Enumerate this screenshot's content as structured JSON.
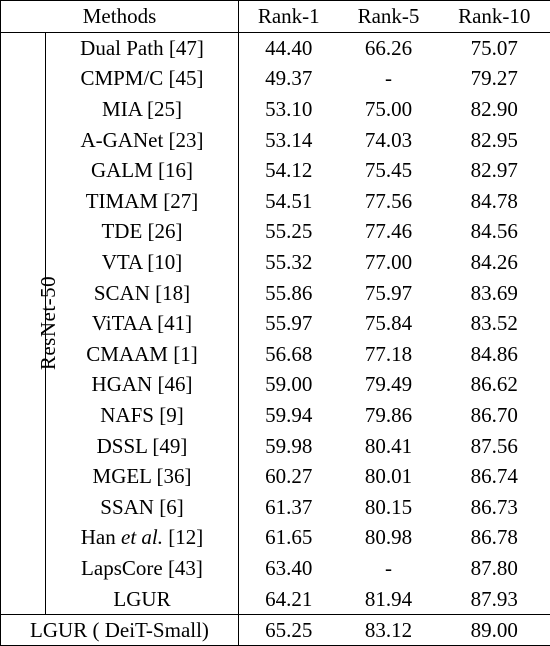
{
  "header": {
    "methods": "Methods",
    "rank1": "Rank-1",
    "rank5": "Rank-5",
    "rank10": "Rank-10"
  },
  "group_label": "ResNet-50",
  "rows": [
    {
      "method": "Dual Path [47]",
      "r1": "44.40",
      "r5": "66.26",
      "r10": "75.07"
    },
    {
      "method": "CMPM/C [45]",
      "r1": "49.37",
      "r5": "-",
      "r10": "79.27"
    },
    {
      "method": "MIA [25]",
      "r1": "53.10",
      "r5": "75.00",
      "r10": "82.90"
    },
    {
      "method": "A-GANet [23]",
      "r1": "53.14",
      "r5": "74.03",
      "r10": "82.95"
    },
    {
      "method": "GALM [16]",
      "r1": "54.12",
      "r5": "75.45",
      "r10": "82.97"
    },
    {
      "method": "TIMAM [27]",
      "r1": "54.51",
      "r5": "77.56",
      "r10": "84.78"
    },
    {
      "method": "TDE [26]",
      "r1": "55.25",
      "r5": "77.46",
      "r10": "84.56"
    },
    {
      "method": "VTA [10]",
      "r1": "55.32",
      "r5": "77.00",
      "r10": "84.26"
    },
    {
      "method": "SCAN [18]",
      "r1": "55.86",
      "r5": "75.97",
      "r10": "83.69"
    },
    {
      "method": "ViTAA [41]",
      "r1": "55.97",
      "r5": "75.84",
      "r10": "83.52"
    },
    {
      "method": "CMAAM [1]",
      "r1": "56.68",
      "r5": "77.18",
      "r10": "84.86"
    },
    {
      "method": "HGAN [46]",
      "r1": "59.00",
      "r5": "79.49",
      "r10": "86.62"
    },
    {
      "method": "NAFS [9]",
      "r1": "59.94",
      "r5": "79.86",
      "r10": "86.70"
    },
    {
      "method": "DSSL [49]",
      "r1": "59.98",
      "r5": "80.41",
      "r10": "87.56"
    },
    {
      "method": "MGEL [36]",
      "r1": "60.27",
      "r5": "80.01",
      "r10": "86.74"
    },
    {
      "method": "SSAN [6]",
      "r1": "61.37",
      "r5": "80.15",
      "r10": "86.73"
    },
    {
      "method_pre": "Han ",
      "method_ital": "et al.",
      "method_post": " [12]",
      "r1": "61.65",
      "r5": "80.98",
      "r10": "86.78"
    },
    {
      "method": "LapsCore [43]",
      "r1": "63.40",
      "r5": "-",
      "r10": "87.80"
    },
    {
      "method": "LGUR",
      "r1": "64.21",
      "r5": "81.94",
      "r10": "87.93"
    }
  ],
  "deit": {
    "method": "LGUR",
    "sub": " ( DeiT-Small)",
    "r1": "65.25",
    "r5": "83.12",
    "r10": "89.00"
  }
}
